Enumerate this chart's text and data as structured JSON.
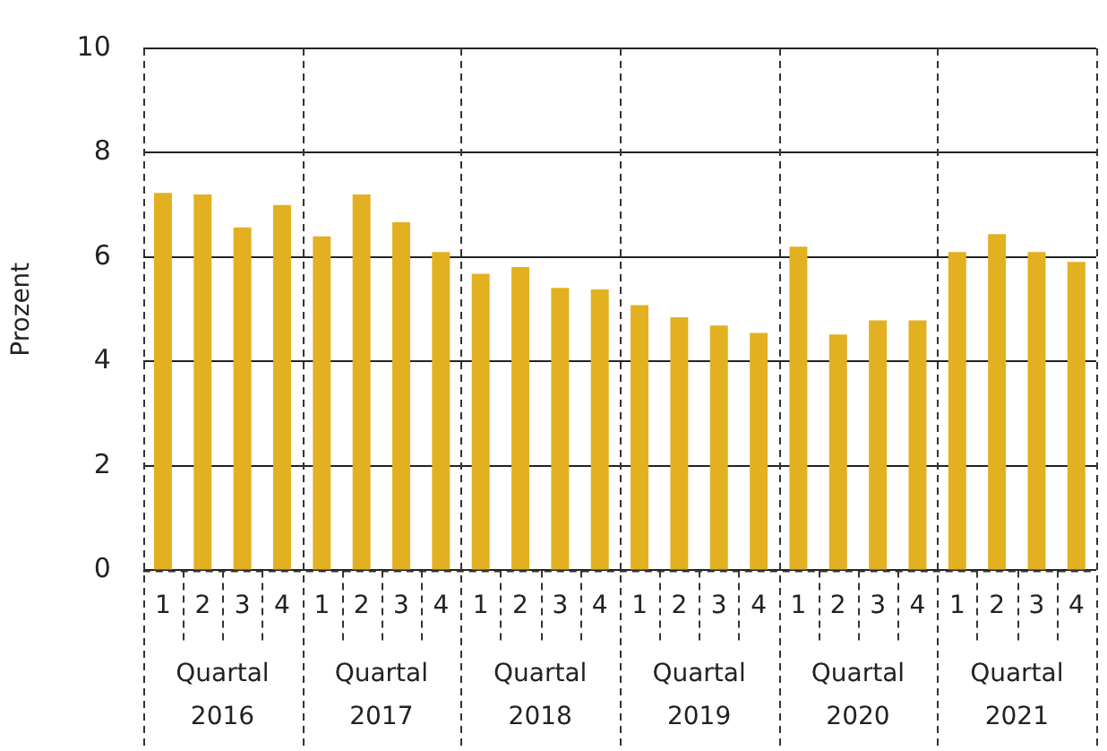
{
  "chart_data": {
    "type": "bar",
    "ylabel": "Prozent",
    "categories": [
      "1",
      "2",
      "3",
      "4",
      "1",
      "2",
      "3",
      "4",
      "1",
      "2",
      "3",
      "4",
      "1",
      "2",
      "3",
      "4",
      "1",
      "2",
      "3",
      "4",
      "1",
      "2",
      "3",
      "4"
    ],
    "values": [
      7.23,
      7.2,
      6.57,
      7.0,
      6.4,
      7.2,
      6.67,
      6.1,
      5.68,
      5.81,
      5.41,
      5.38,
      5.08,
      4.85,
      4.69,
      4.55,
      6.2,
      4.52,
      4.79,
      4.79,
      6.1,
      6.44,
      6.1,
      5.91
    ],
    "color": "#e2b021",
    "ylim": [
      0,
      10
    ],
    "yticks": [
      0,
      2,
      4,
      6,
      8,
      10
    ],
    "grid": "y",
    "legend": false,
    "annotations": [
      "Quartal 2016",
      "Quartal 2017",
      "Quartal 2018",
      "Quartal 2019",
      "Quartal 2020",
      "Quartal 2021"
    ]
  }
}
